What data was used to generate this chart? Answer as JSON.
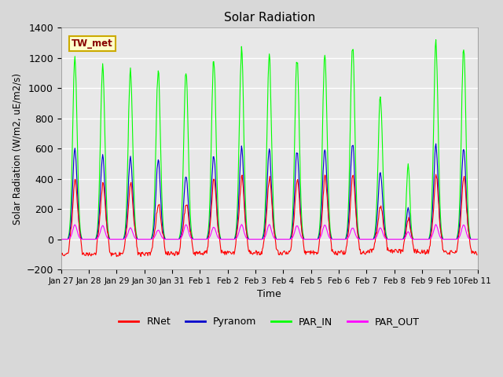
{
  "title": "Solar Radiation",
  "ylabel": "Solar Radiation (W/m2, uE/m2/s)",
  "xlabel": "Time",
  "station_label": "TW_met",
  "ylim": [
    -200,
    1400
  ],
  "yticks": [
    -200,
    0,
    200,
    400,
    600,
    800,
    1000,
    1200,
    1400
  ],
  "date_labels": [
    "Jan 27",
    "Jan 28",
    "Jan 29",
    "Jan 30",
    "Jan 31",
    "Feb 1",
    "Feb 2",
    "Feb 3",
    "Feb 4",
    "Feb 5",
    "Feb 6",
    "Feb 7",
    "Feb 8",
    "Feb 9",
    "Feb 10",
    "Feb 11"
  ],
  "series_colors": {
    "RNet": "#ff0000",
    "Pyranom": "#0000cc",
    "PAR_IN": "#00ff00",
    "PAR_OUT": "#ff00ff"
  },
  "background_color": "#d8d8d8",
  "plot_background": "#e8e8e8",
  "n_days": 15,
  "points_per_day": 48,
  "peak_par_in": [
    1195,
    1150,
    1115,
    1115,
    1090,
    1195,
    1240,
    1200,
    1200,
    1235,
    1285,
    940,
    500,
    1285,
    1265
  ],
  "peak_pyranom": [
    595,
    555,
    540,
    525,
    410,
    555,
    600,
    585,
    585,
    600,
    635,
    440,
    210,
    615,
    600
  ],
  "peak_rnet": [
    385,
    375,
    370,
    235,
    230,
    405,
    410,
    400,
    400,
    420,
    425,
    220,
    140,
    425,
    415
  ],
  "peak_par_out": [
    95,
    90,
    75,
    60,
    95,
    80,
    95,
    95,
    90,
    95,
    75,
    75,
    50,
    95,
    95
  ],
  "night_rnet": [
    -100,
    -100,
    -100,
    -95,
    -95,
    -90,
    -90,
    -90,
    -90,
    -90,
    -90,
    -80,
    -80,
    -85,
    -90
  ],
  "day_width": [
    0.08,
    0.08,
    0.08,
    0.08,
    0.08,
    0.08,
    0.08,
    0.08,
    0.08,
    0.08,
    0.08,
    0.08,
    0.06,
    0.08,
    0.08
  ]
}
